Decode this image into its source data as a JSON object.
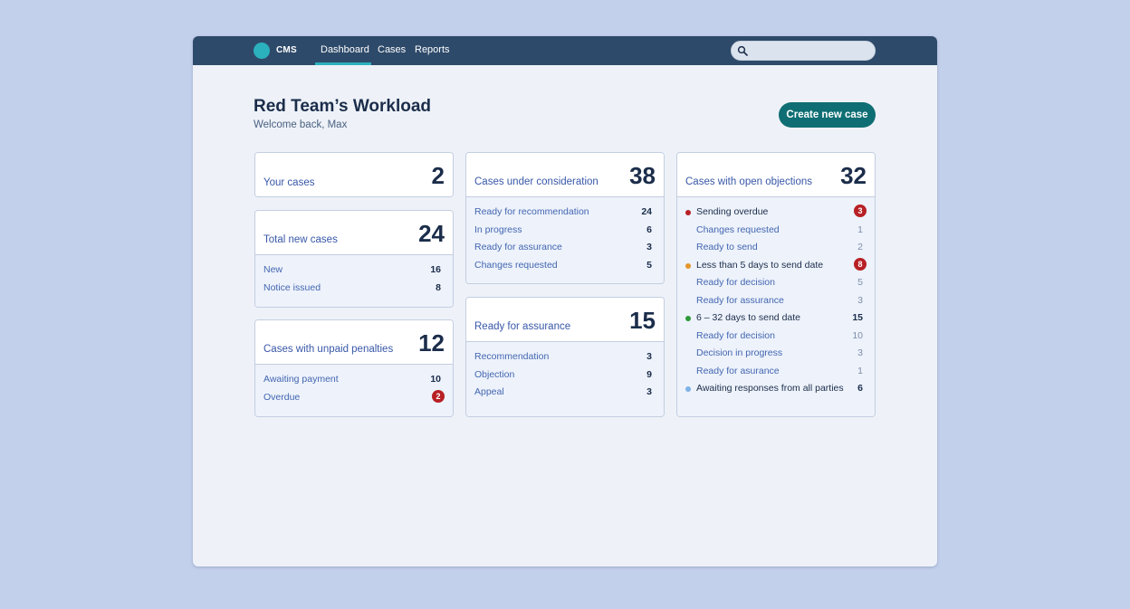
{
  "app": {
    "name": "CMS"
  },
  "nav": {
    "items": [
      {
        "label": "Dashboard",
        "active": true
      },
      {
        "label": "Cases",
        "active": false
      },
      {
        "label": "Reports",
        "active": false
      }
    ]
  },
  "search": {
    "placeholder": "",
    "value": ""
  },
  "header": {
    "title": "Red Team’s Workload",
    "subtitle": "Welcome back, Max",
    "create_label": "Create new case"
  },
  "colors": {
    "topbar": "#2e4a6a",
    "accent": "#2bb0bd",
    "primary_button": "#0e6e73",
    "badge_red": "#b72025",
    "dot_red": "#b72025",
    "dot_orange": "#e6952a",
    "dot_green": "#2d9a3a",
    "dot_blue": "#7fb1e6"
  },
  "cards": {
    "your_cases": {
      "title": "Your cases",
      "count": "2"
    },
    "total_new": {
      "title": "Total new cases",
      "count": "24",
      "rows": [
        {
          "label": "New",
          "value": "16"
        },
        {
          "label": "Notice issued",
          "value": "8"
        }
      ]
    },
    "unpaid": {
      "title": "Cases with unpaid penalties",
      "count": "12",
      "rows": [
        {
          "label": "Awaiting payment",
          "value": "10"
        },
        {
          "label": "Overdue",
          "value": "2"
        }
      ]
    },
    "consideration": {
      "title": "Cases under consideration",
      "count": "38",
      "rows": [
        {
          "label": "Ready for recommendation",
          "value": "24"
        },
        {
          "label": "In progress",
          "value": "6"
        },
        {
          "label": "Ready for assurance",
          "value": "3"
        },
        {
          "label": "Changes requested",
          "value": "5"
        }
      ]
    },
    "assurance": {
      "title": "Ready for assurance",
      "count": "15",
      "rows": [
        {
          "label": "Recommendation",
          "value": "3"
        },
        {
          "label": "Objection",
          "value": "9"
        },
        {
          "label": "Appeal",
          "value": "3"
        }
      ]
    },
    "objections": {
      "title": "Cases with open objections",
      "count": "32",
      "rows": [
        {
          "label": "Sending overdue",
          "value": "3"
        },
        {
          "label": "Changes requested",
          "value": "1"
        },
        {
          "label": "Ready to send",
          "value": "2"
        },
        {
          "label": "Less than 5 days to send date",
          "value": "8"
        },
        {
          "label": "Ready for decision",
          "value": "5"
        },
        {
          "label": "Ready for assurance",
          "value": "3"
        },
        {
          "label": "6 – 32 days to send date",
          "value": "15"
        },
        {
          "label": "Ready for decision",
          "value": "10"
        },
        {
          "label": "Decision in progress",
          "value": "3"
        },
        {
          "label": "Ready for asurance",
          "value": "1"
        },
        {
          "label": "Awaiting responses from all parties",
          "value": "6"
        }
      ]
    }
  }
}
